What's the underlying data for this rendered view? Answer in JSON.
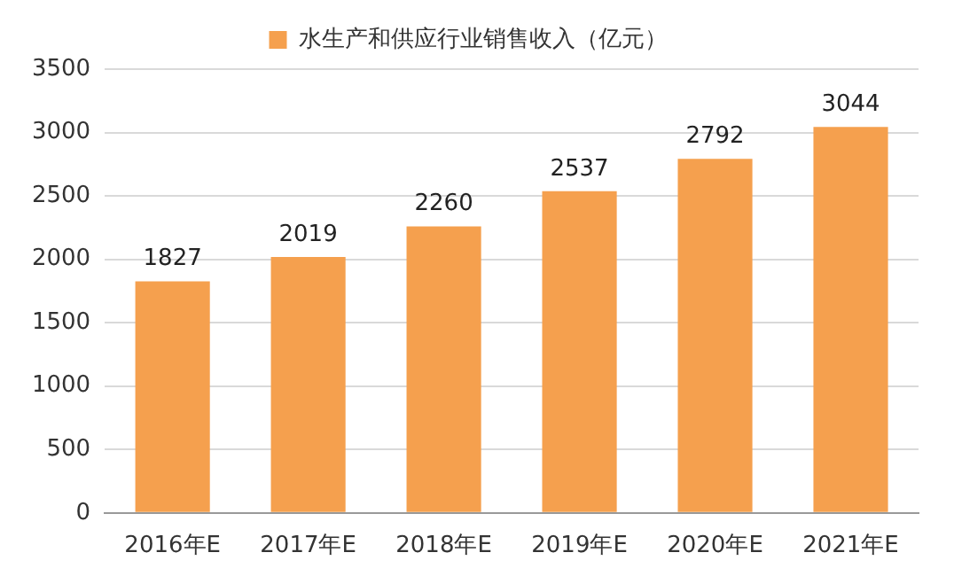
{
  "chart_data": {
    "type": "bar",
    "categories": [
      "2016年E",
      "2017年E",
      "2018年E",
      "2019年E",
      "2020年E",
      "2021年E"
    ],
    "series": [
      {
        "name": "水生产和供应行业销售收入（亿元）",
        "color": "#f5a04e",
        "values": [
          1827,
          2019,
          2260,
          2537,
          2792,
          3044
        ]
      }
    ],
    "ylim": [
      0,
      3500
    ],
    "yticks": [
      0,
      500,
      1000,
      1500,
      2000,
      2500,
      3000,
      3500
    ],
    "grid": "y",
    "legend": "top",
    "data_labels": true
  }
}
